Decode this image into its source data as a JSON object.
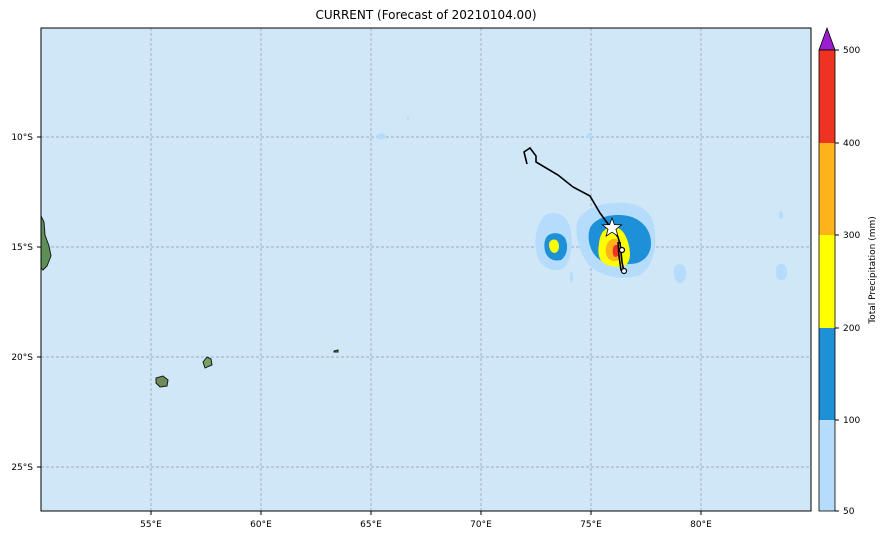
{
  "title": "CURRENT (Forecast of 20210104.00)",
  "map": {
    "ocean_color": "#d0e7f7",
    "lon_ticks": [
      "55°E",
      "60°E",
      "65°E",
      "70°E",
      "75°E",
      "80°E"
    ],
    "lat_ticks": [
      "10°S",
      "15°S",
      "20°S",
      "25°S"
    ],
    "colorbar": {
      "label": "Total Precipitation (mm)",
      "ticks": [
        "50",
        "100",
        "200",
        "300",
        "400",
        "500"
      ],
      "colors": [
        "#b5dcfb",
        "#1e90d8",
        "#ffff00",
        "#ffb31a",
        "#ee3322"
      ],
      "extend_color": "#9a1ecf"
    }
  }
}
